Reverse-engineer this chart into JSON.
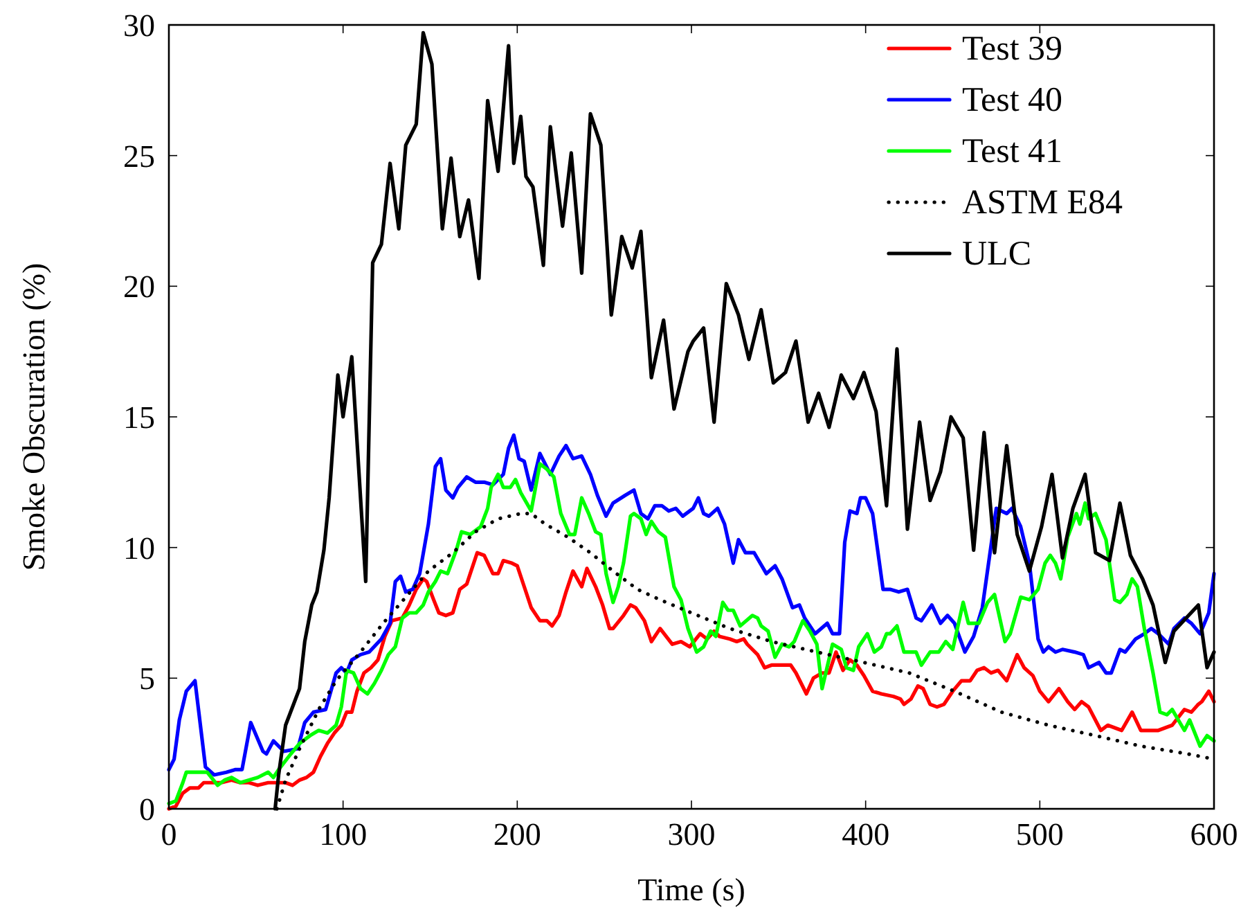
{
  "chart_data": {
    "type": "line",
    "xlabel": "Time (s)",
    "ylabel": "Smoke Obscuration (%)",
    "xlim": [
      0,
      600
    ],
    "xticks": [
      0,
      100,
      200,
      300,
      400,
      500,
      600
    ],
    "ylim": [
      0,
      30
    ],
    "yticks": [
      0,
      5,
      10,
      15,
      20,
      25,
      30
    ],
    "grid": false,
    "legend": "top right",
    "marker": "none",
    "series": [
      {
        "name": "Test 39",
        "color": "#ff0000",
        "line_style": "solid",
        "x": [
          0,
          4,
          8,
          12,
          17,
          20,
          25,
          30,
          36,
          41,
          46,
          51,
          57,
          61,
          67,
          71,
          75,
          79,
          83,
          87,
          91,
          95,
          99,
          102,
          105,
          108,
          112,
          116,
          120,
          124,
          128,
          134,
          138,
          142,
          146,
          148,
          152,
          155,
          159,
          163,
          167,
          171,
          173,
          177,
          181,
          186,
          189,
          192,
          197,
          200,
          204,
          208,
          213,
          217,
          220,
          224,
          228,
          232,
          237,
          240,
          245,
          249,
          253,
          255,
          261,
          265,
          268,
          273,
          277,
          282,
          289,
          294,
          299,
          305,
          309,
          313,
          316,
          322,
          326,
          330,
          332,
          338,
          342,
          346,
          350,
          357,
          360,
          366,
          370,
          375,
          379,
          383,
          387,
          391,
          395,
          399,
          404,
          409,
          416,
          420,
          422,
          426,
          430,
          433,
          437,
          441,
          445,
          450,
          455,
          460,
          464,
          468,
          472,
          476,
          481,
          487,
          491,
          496,
          500,
          505,
          511,
          516,
          520,
          524,
          528,
          535,
          539,
          543,
          547,
          553,
          558,
          563,
          568,
          572,
          576,
          583,
          587,
          591,
          593,
          597,
          600
        ],
        "values": [
          0.0,
          0.1,
          0.6,
          0.8,
          0.8,
          1.0,
          1.0,
          1.0,
          1.1,
          1.0,
          1.0,
          0.9,
          1.0,
          1.0,
          1.0,
          0.9,
          1.1,
          1.2,
          1.4,
          2.0,
          2.5,
          2.9,
          3.2,
          3.7,
          3.7,
          4.5,
          5.2,
          5.4,
          5.7,
          6.6,
          7.2,
          7.3,
          7.8,
          8.4,
          8.8,
          8.7,
          8.0,
          7.5,
          7.4,
          7.5,
          8.4,
          8.6,
          9.0,
          9.8,
          9.7,
          9.0,
          9.0,
          9.5,
          9.4,
          9.3,
          8.5,
          7.7,
          7.2,
          7.2,
          7.0,
          7.4,
          8.3,
          9.1,
          8.5,
          9.2,
          8.5,
          7.8,
          6.9,
          6.9,
          7.4,
          7.8,
          7.7,
          7.2,
          6.4,
          6.9,
          6.3,
          6.4,
          6.2,
          6.7,
          6.5,
          6.8,
          6.6,
          6.5,
          6.4,
          6.5,
          6.3,
          5.9,
          5.4,
          5.5,
          5.5,
          5.5,
          5.2,
          4.4,
          5.0,
          5.2,
          5.2,
          6.0,
          5.3,
          5.7,
          5.5,
          5.1,
          4.5,
          4.4,
          4.3,
          4.2,
          4.0,
          4.2,
          4.7,
          4.6,
          4.0,
          3.9,
          4.0,
          4.5,
          4.9,
          4.9,
          5.3,
          5.4,
          5.2,
          5.3,
          4.9,
          5.9,
          5.4,
          5.1,
          4.5,
          4.1,
          4.6,
          4.1,
          3.8,
          4.1,
          3.9,
          3.0,
          3.2,
          3.1,
          3.0,
          3.7,
          3.0,
          3.0,
          3.0,
          3.1,
          3.2,
          3.8,
          3.7,
          4.0,
          4.1,
          4.5,
          4.1
        ]
      },
      {
        "name": "Test 40",
        "color": "#0000ff",
        "line_style": "solid",
        "x": [
          0,
          3,
          6,
          10,
          15,
          21,
          26,
          33,
          38,
          42,
          47,
          54,
          56,
          60,
          66,
          74,
          78,
          83,
          90,
          96,
          99,
          102,
          105,
          110,
          115,
          122,
          127,
          130,
          133,
          136,
          140,
          144,
          149,
          153,
          156,
          159,
          163,
          166,
          171,
          176,
          181,
          186,
          192,
          195,
          198,
          201,
          204,
          208,
          213,
          219,
          224,
          228,
          232,
          237,
          242,
          246,
          251,
          255,
          262,
          267,
          271,
          275,
          279,
          283,
          287,
          291,
          295,
          301,
          304,
          307,
          310,
          315,
          319,
          324,
          327,
          331,
          336,
          343,
          348,
          352,
          358,
          362,
          365,
          371,
          378,
          381,
          385,
          388,
          391,
          395,
          397,
          400,
          404,
          410,
          414,
          419,
          424,
          429,
          432,
          438,
          443,
          447,
          451,
          457,
          462,
          467,
          475,
          481,
          484,
          489,
          494,
          499,
          502,
          505,
          509,
          513,
          520,
          525,
          528,
          534,
          538,
          541,
          546,
          549,
          555,
          560,
          564,
          568,
          574,
          577,
          583,
          587,
          592,
          597,
          600
        ],
        "values": [
          1.5,
          1.9,
          3.4,
          4.5,
          4.9,
          1.6,
          1.3,
          1.4,
          1.5,
          1.5,
          3.3,
          2.2,
          2.1,
          2.6,
          2.2,
          2.3,
          3.3,
          3.7,
          3.8,
          5.2,
          5.4,
          5.2,
          5.7,
          5.9,
          6.0,
          6.5,
          7.1,
          8.7,
          8.9,
          8.3,
          8.4,
          9.0,
          10.9,
          13.1,
          13.4,
          12.2,
          11.9,
          12.3,
          12.7,
          12.5,
          12.5,
          12.4,
          12.8,
          13.8,
          14.3,
          13.4,
          13.3,
          12.2,
          13.6,
          12.8,
          13.5,
          13.9,
          13.4,
          13.5,
          12.8,
          12.0,
          11.2,
          11.7,
          12.0,
          12.2,
          11.3,
          11.1,
          11.6,
          11.6,
          11.4,
          11.5,
          11.2,
          11.5,
          11.9,
          11.3,
          11.2,
          11.5,
          10.9,
          9.4,
          10.3,
          9.8,
          9.8,
          9.0,
          9.3,
          8.8,
          7.7,
          7.8,
          7.3,
          6.7,
          7.1,
          6.7,
          6.7,
          10.2,
          11.4,
          11.3,
          11.9,
          11.9,
          11.3,
          8.4,
          8.4,
          8.3,
          8.4,
          7.3,
          7.2,
          7.8,
          7.1,
          7.4,
          7.1,
          6.0,
          6.6,
          7.7,
          11.5,
          11.3,
          11.5,
          10.8,
          9.4,
          6.5,
          6.0,
          6.2,
          6.0,
          6.1,
          6.0,
          5.9,
          5.4,
          5.6,
          5.2,
          5.2,
          6.1,
          6.0,
          6.5,
          6.7,
          6.9,
          6.7,
          6.3,
          6.9,
          7.3,
          7.1,
          6.7,
          7.5,
          9.0
        ]
      },
      {
        "name": "Test 41",
        "color": "#00ff00",
        "line_style": "solid",
        "x": [
          0,
          4,
          8,
          10,
          17,
          22,
          28,
          32,
          36,
          41,
          51,
          57,
          60,
          63,
          70,
          75,
          81,
          86,
          91,
          96,
          99,
          102,
          106,
          110,
          114,
          118,
          122,
          126,
          130,
          134,
          138,
          142,
          146,
          149,
          153,
          156,
          160,
          165,
          168,
          173,
          179,
          183,
          185,
          189,
          192,
          196,
          199,
          202,
          208,
          213,
          217,
          221,
          225,
          230,
          233,
          237,
          241,
          245,
          248,
          251,
          255,
          258,
          261,
          265,
          267,
          271,
          274,
          277,
          281,
          285,
          290,
          294,
          298,
          303,
          307,
          311,
          314,
          318,
          321,
          324,
          328,
          335,
          338,
          340,
          344,
          348,
          352,
          356,
          359,
          364,
          368,
          372,
          375,
          381,
          386,
          389,
          393,
          396,
          401,
          405,
          409,
          412,
          414,
          418,
          422,
          429,
          432,
          437,
          442,
          446,
          450,
          456,
          459,
          465,
          470,
          474,
          480,
          483,
          489,
          494,
          499,
          503,
          506,
          509,
          512,
          516,
          521,
          523,
          526,
          528,
          532,
          538,
          543,
          546,
          550,
          553,
          556,
          560,
          565,
          569,
          573,
          576,
          583,
          586,
          592,
          596,
          600
        ],
        "values": [
          0.2,
          0.3,
          1.0,
          1.4,
          1.4,
          1.4,
          0.9,
          1.1,
          1.2,
          1.0,
          1.2,
          1.4,
          1.2,
          1.5,
          2.1,
          2.5,
          2.8,
          3.0,
          2.9,
          3.2,
          3.9,
          5.3,
          5.2,
          4.6,
          4.4,
          4.8,
          5.3,
          5.9,
          6.2,
          7.3,
          7.5,
          7.5,
          7.8,
          8.3,
          8.7,
          9.1,
          9.0,
          9.9,
          10.6,
          10.5,
          10.8,
          11.5,
          12.3,
          12.8,
          12.3,
          12.3,
          12.6,
          12.1,
          11.4,
          13.2,
          13.0,
          12.7,
          11.3,
          10.5,
          10.5,
          11.9,
          11.3,
          10.6,
          10.5,
          9.0,
          7.9,
          8.5,
          9.4,
          11.2,
          11.3,
          11.1,
          10.5,
          11.0,
          10.6,
          10.4,
          8.5,
          8.0,
          6.9,
          6.0,
          6.2,
          6.8,
          6.6,
          7.9,
          7.6,
          7.6,
          7.0,
          7.4,
          7.3,
          7.0,
          6.8,
          5.8,
          6.3,
          6.2,
          6.4,
          7.2,
          6.8,
          6.3,
          4.6,
          6.3,
          6.1,
          5.4,
          5.3,
          6.2,
          6.7,
          6.0,
          6.2,
          6.7,
          6.7,
          7.0,
          6.0,
          6.0,
          5.5,
          6.0,
          6.0,
          6.4,
          6.1,
          7.9,
          7.1,
          7.1,
          7.9,
          8.2,
          6.4,
          6.7,
          8.1,
          8.0,
          8.4,
          9.4,
          9.7,
          9.4,
          8.8,
          10.4,
          11.3,
          10.9,
          11.7,
          11.1,
          11.3,
          10.3,
          8.0,
          7.9,
          8.2,
          8.8,
          8.5,
          6.9,
          5.2,
          3.7,
          3.6,
          3.8,
          3.0,
          3.4,
          2.4,
          2.8,
          2.6
        ]
      },
      {
        "name": "ASTM E84",
        "color": "#000000",
        "line_style": "dotted",
        "x": [
          62,
          67,
          75,
          86,
          96,
          110,
          123,
          136,
          149,
          163,
          176,
          189,
          202,
          208,
          216,
          229,
          242,
          255,
          269,
          282,
          300,
          322,
          346,
          372,
          399,
          425,
          451,
          478,
          505,
          532,
          558,
          585,
          600
        ],
        "values": [
          0.0,
          1.1,
          2.3,
          3.8,
          4.9,
          6.0,
          7.1,
          8.1,
          9.1,
          9.8,
          10.6,
          11.1,
          11.3,
          11.3,
          10.9,
          10.4,
          9.8,
          9.1,
          8.4,
          8.0,
          7.5,
          6.9,
          6.4,
          6.0,
          5.6,
          5.2,
          4.5,
          3.7,
          3.2,
          2.8,
          2.4,
          2.1,
          1.9
        ]
      },
      {
        "name": "ULC",
        "color": "#000000",
        "line_style": "solid",
        "x": [
          61,
          63,
          67,
          75,
          78,
          82,
          85,
          89,
          92,
          97,
          100,
          105,
          113,
          117,
          122,
          127,
          132,
          136,
          142,
          146,
          151,
          157,
          162,
          167,
          172,
          178,
          183,
          189,
          195,
          198,
          202,
          205,
          209,
          215,
          219,
          226,
          231,
          237,
          242,
          248,
          254,
          260,
          266,
          271,
          277,
          284,
          290,
          298,
          301,
          307,
          313,
          320,
          327,
          333,
          340,
          347,
          354,
          360,
          367,
          373,
          379,
          386,
          393,
          399,
          406,
          412,
          418,
          424,
          431,
          437,
          443,
          449,
          456,
          462,
          468,
          474,
          481,
          487,
          494,
          501,
          507,
          513,
          519,
          526,
          532,
          540,
          546,
          552,
          559,
          565,
          572,
          577,
          584,
          591,
          596,
          600
        ],
        "values": [
          0.0,
          1.3,
          3.2,
          4.6,
          6.4,
          7.8,
          8.3,
          9.9,
          11.9,
          16.6,
          15.0,
          17.3,
          8.7,
          20.9,
          21.6,
          24.7,
          22.2,
          25.4,
          26.2,
          29.7,
          28.5,
          22.2,
          24.9,
          21.9,
          23.3,
          20.3,
          27.1,
          24.4,
          29.2,
          24.7,
          26.5,
          24.2,
          23.8,
          20.8,
          26.1,
          22.3,
          25.1,
          20.5,
          26.6,
          25.4,
          18.9,
          21.9,
          20.7,
          22.1,
          16.5,
          18.7,
          15.3,
          17.5,
          17.9,
          18.4,
          14.8,
          20.1,
          18.9,
          17.2,
          19.1,
          16.3,
          16.7,
          17.9,
          14.8,
          15.9,
          14.6,
          16.6,
          15.7,
          16.7,
          15.2,
          11.6,
          17.6,
          10.7,
          14.8,
          11.8,
          12.9,
          15.0,
          14.2,
          9.9,
          14.4,
          9.8,
          13.9,
          10.5,
          9.1,
          10.8,
          12.8,
          9.6,
          11.5,
          12.8,
          9.8,
          9.5,
          11.7,
          9.7,
          8.8,
          7.8,
          5.6,
          6.8,
          7.3,
          7.8,
          5.4,
          6.0
        ]
      }
    ]
  }
}
